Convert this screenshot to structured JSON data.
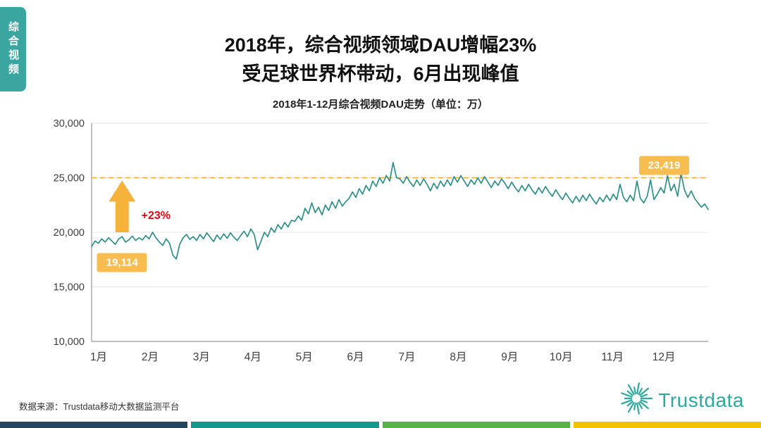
{
  "sidebar": {
    "tab_label": "综合视频"
  },
  "header": {
    "title_line1": "2018年，综合视频领域DAU增幅23%",
    "title_line2": "受足球世界杯带动，6月出现峰值",
    "subtitle": "2018年1-12月综合视频DAU走势（单位：万）"
  },
  "footer": {
    "source": "数据来源：Trustdata移动大数据监测平台",
    "logo_text": "Trustdata"
  },
  "colors": {
    "accent_teal": "#3ba6a0",
    "line": "#2f8e88",
    "badge_orange": "#f8bd4f",
    "arrow_orange": "#f5b33b",
    "growth_red": "#e60012",
    "dashed_orange": "#f0a830",
    "logo_teal": "#2ca89c",
    "footer_bars": [
      "#24455e",
      "#12988c",
      "#58b247",
      "#f3c200"
    ]
  },
  "chart_data": {
    "type": "line",
    "title": "2018年1-12月综合视频DAU走势（单位：万）",
    "unit": "万",
    "x_labels": [
      "1月",
      "2月",
      "3月",
      "4月",
      "5月",
      "6月",
      "7月",
      "8月",
      "9月",
      "10月",
      "11月",
      "12月"
    ],
    "y_ticks": [
      10000,
      15000,
      20000,
      25000,
      30000
    ],
    "y_tick_labels": [
      "10,000",
      "15,000",
      "20,000",
      "25,000",
      "30,000"
    ],
    "ylim": [
      10000,
      30000
    ],
    "grid": true,
    "legend": "none",
    "reference_line": {
      "value": 25000,
      "style": "dashed",
      "color": "#f0a830"
    },
    "series": [
      {
        "name": "综合视频DAU",
        "color": "#2f8e88",
        "values": [
          18700,
          19200,
          19000,
          19400,
          19100,
          19500,
          19200,
          18900,
          19400,
          19600,
          19100,
          19300,
          19650,
          19250,
          19500,
          19300,
          19700,
          19400,
          20000,
          19500,
          19100,
          18800,
          19400,
          19000,
          17900,
          17550,
          18900,
          19500,
          19800,
          19350,
          19600,
          19250,
          19800,
          19400,
          19950,
          19550,
          19150,
          19750,
          19350,
          19850,
          19450,
          19950,
          19550,
          19250,
          19700,
          20100,
          19600,
          20300,
          19800,
          18400,
          19200,
          20000,
          19600,
          20400,
          20000,
          20700,
          20300,
          20900,
          20500,
          21100,
          21000,
          21500,
          21100,
          22200,
          21700,
          22700,
          21800,
          22300,
          21600,
          22500,
          22000,
          22800,
          22200,
          23000,
          22400,
          22800,
          23100,
          23700,
          23200,
          24000,
          23500,
          24300,
          23800,
          24700,
          24200,
          25000,
          24500,
          25200,
          24700,
          26400,
          25000,
          24900,
          24500,
          25100,
          24600,
          24200,
          24800,
          24300,
          24900,
          24400,
          23800,
          24500,
          24000,
          24700,
          24200,
          24800,
          24300,
          25100,
          24600,
          25200,
          24700,
          24200,
          24800,
          24400,
          25000,
          24500,
          25100,
          24600,
          24100,
          24700,
          24300,
          24900,
          24500,
          24000,
          24600,
          24100,
          23700,
          24300,
          23800,
          24400,
          23900,
          23500,
          24100,
          23600,
          24200,
          23700,
          23300,
          23900,
          23400,
          23000,
          23600,
          23100,
          22700,
          23300,
          22800,
          23400,
          22900,
          23500,
          23000,
          22600,
          23200,
          22800,
          23400,
          22900,
          23500,
          23000,
          24400,
          23200,
          22800,
          23400,
          22900,
          24700,
          23100,
          22700,
          23300,
          24800,
          23000,
          23500,
          24100,
          23600,
          25200,
          23800,
          24400,
          23300,
          25400,
          23900,
          23200,
          23800,
          23100,
          22700,
          22300,
          22600,
          22100
        ]
      }
    ],
    "annotations": {
      "arrow": {
        "day": 18,
        "from_value": 20000,
        "to_value": 24750
      },
      "growth_text": {
        "label": "+23%",
        "day": 38,
        "value": 21500
      },
      "start_badge": {
        "label": "19,114",
        "day": 18,
        "value": 17250
      },
      "peak_badge": {
        "label": "23,419",
        "day": 338,
        "value": 26100
      }
    }
  }
}
